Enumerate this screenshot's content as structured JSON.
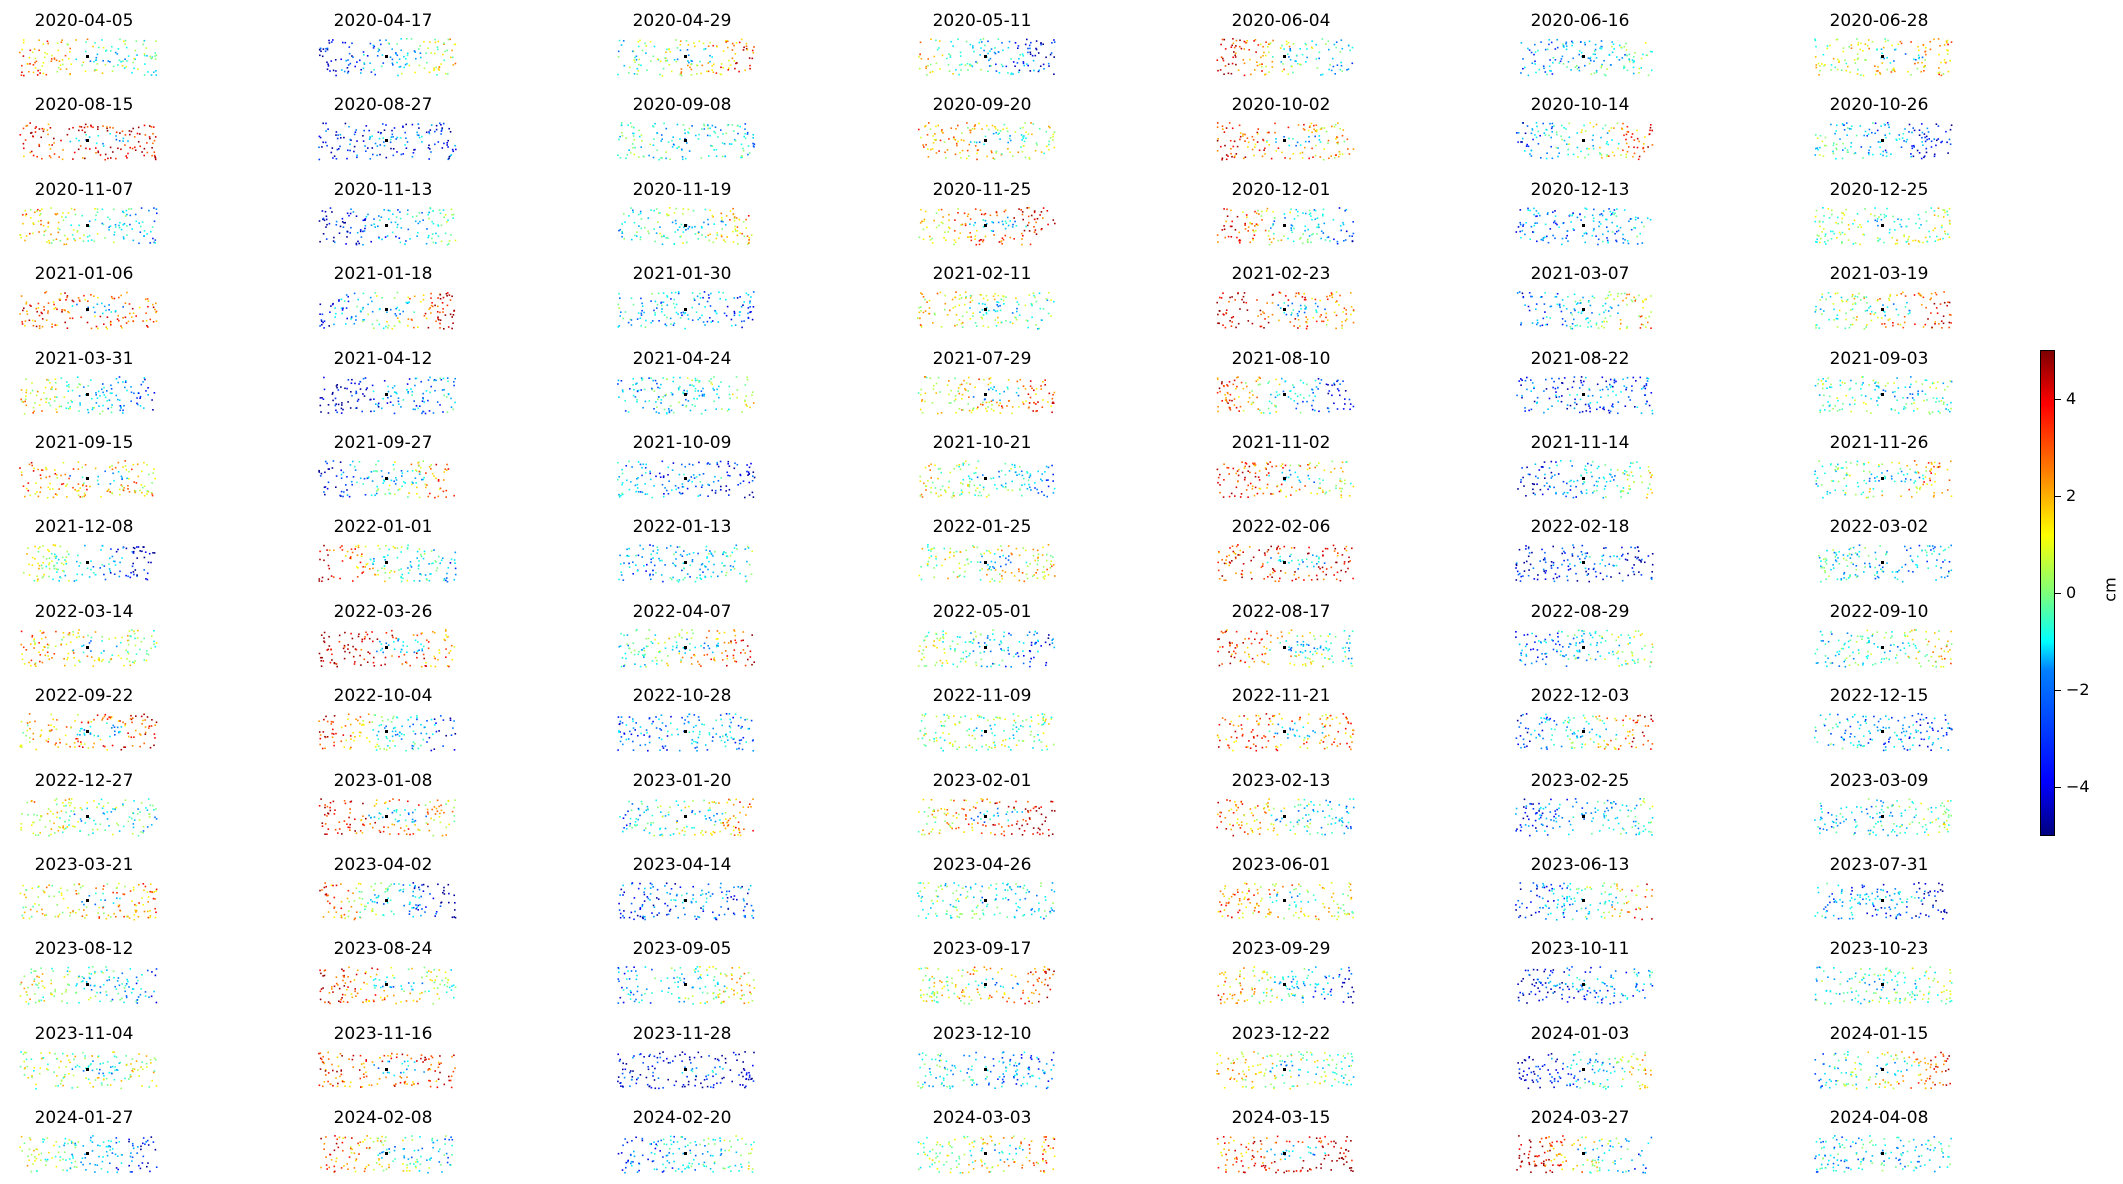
{
  "chart_data": {
    "type": "scatter",
    "title": "",
    "panels_per_row": 7,
    "dates": [
      "2020-04-05",
      "2020-04-17",
      "2020-04-29",
      "2020-05-11",
      "2020-06-04",
      "2020-06-16",
      "2020-06-28",
      "2020-08-15",
      "2020-08-27",
      "2020-09-08",
      "2020-09-20",
      "2020-10-02",
      "2020-10-14",
      "2020-10-26",
      "2020-11-07",
      "2020-11-13",
      "2020-11-19",
      "2020-11-25",
      "2020-12-01",
      "2020-12-13",
      "2020-12-25",
      "2021-01-06",
      "2021-01-18",
      "2021-01-30",
      "2021-02-11",
      "2021-02-23",
      "2021-03-07",
      "2021-03-19",
      "2021-03-31",
      "2021-04-12",
      "2021-04-24",
      "2021-07-29",
      "2021-08-10",
      "2021-08-22",
      "2021-09-03",
      "2021-09-15",
      "2021-09-27",
      "2021-10-09",
      "2021-10-21",
      "2021-11-02",
      "2021-11-14",
      "2021-11-26",
      "2021-12-08",
      "2022-01-01",
      "2022-01-13",
      "2022-01-25",
      "2022-02-06",
      "2022-02-18",
      "2022-03-02",
      "2022-03-14",
      "2022-03-26",
      "2022-04-07",
      "2022-05-01",
      "2022-08-17",
      "2022-08-29",
      "2022-09-10",
      "2022-09-22",
      "2022-10-04",
      "2022-10-28",
      "2022-11-09",
      "2022-11-21",
      "2022-12-03",
      "2022-12-15",
      "2022-12-27",
      "2023-01-08",
      "2023-01-20",
      "2023-02-01",
      "2023-02-13",
      "2023-02-25",
      "2023-03-09",
      "2023-03-21",
      "2023-04-02",
      "2023-04-14",
      "2023-04-26",
      "2023-06-01",
      "2023-06-13",
      "2023-07-31",
      "2023-08-12",
      "2023-08-24",
      "2023-09-05",
      "2023-09-17",
      "2023-09-29",
      "2023-10-11",
      "2023-10-23",
      "2023-11-04",
      "2023-11-16",
      "2023-11-28",
      "2023-12-10",
      "2023-12-22",
      "2024-01-03",
      "2024-01-15",
      "2024-01-27",
      "2024-02-08",
      "2024-02-20",
      "2024-03-03",
      "2024-03-15",
      "2024-03-27",
      "2024-04-08"
    ],
    "colorbar": {
      "label": "cm",
      "range": [
        -5,
        5
      ],
      "ticks": [
        -4,
        -2,
        0,
        2,
        4
      ],
      "tick_labels": [
        "−4",
        "−2",
        "0",
        "2",
        "4"
      ],
      "colormap": "jet"
    },
    "axes_visible": false,
    "reference_point_color": "#000000"
  }
}
